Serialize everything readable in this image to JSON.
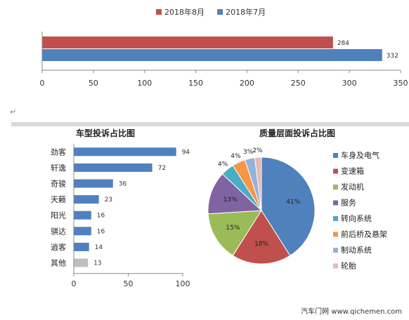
{
  "chart_data": [
    {
      "type": "bar",
      "orientation": "horizontal",
      "title": "",
      "categories": [
        ""
      ],
      "series": [
        {
          "name": "2018年8月",
          "values": [
            284
          ],
          "color": "#c0504d"
        },
        {
          "name": "2018年7月",
          "values": [
            332
          ],
          "color": "#4f81bd"
        }
      ],
      "xlim": [
        0,
        350
      ],
      "xticks": [
        "0",
        "50",
        "100",
        "150",
        "200",
        "250",
        "300",
        "350"
      ],
      "legend": "top",
      "grid": false
    },
    {
      "type": "bar",
      "orientation": "horizontal",
      "title": "车型投诉占比图",
      "categories": [
        "劲客",
        "轩逸",
        "奇骏",
        "天籁",
        "阳光",
        "骐达",
        "逍客",
        "其他"
      ],
      "values": [
        94,
        72,
        36,
        23,
        16,
        16,
        14,
        13
      ],
      "colors": [
        "#4f81bd",
        "#4f81bd",
        "#4f81bd",
        "#4f81bd",
        "#4f81bd",
        "#4f81bd",
        "#4f81bd",
        "#bfbfbf"
      ],
      "xlim": [
        0,
        100
      ],
      "xticks": [
        "0",
        "50",
        "100"
      ],
      "grid": false
    },
    {
      "type": "pie",
      "title": "质量层面投诉占比图",
      "labels": [
        "车身及电气",
        "变速箱",
        "发动机",
        "服务",
        "转向系统",
        "前后桥及悬架",
        "制动系统",
        "轮胎"
      ],
      "values": [
        41,
        18,
        15,
        13,
        4,
        4,
        3,
        2
      ],
      "value_labels": [
        "41%",
        "18%",
        "15%",
        "13%",
        "4%",
        "4%",
        "3%",
        "2%"
      ],
      "colors": [
        "#4f81bd",
        "#c0504d",
        "#9bbb59",
        "#8064a2",
        "#4bacc6",
        "#f79646",
        "#95b3d7",
        "#e6b9b8"
      ],
      "legend": "right"
    }
  ],
  "page": {
    "para_mark": "↵",
    "watermark": "汽车门网 www.qichemen.com"
  }
}
